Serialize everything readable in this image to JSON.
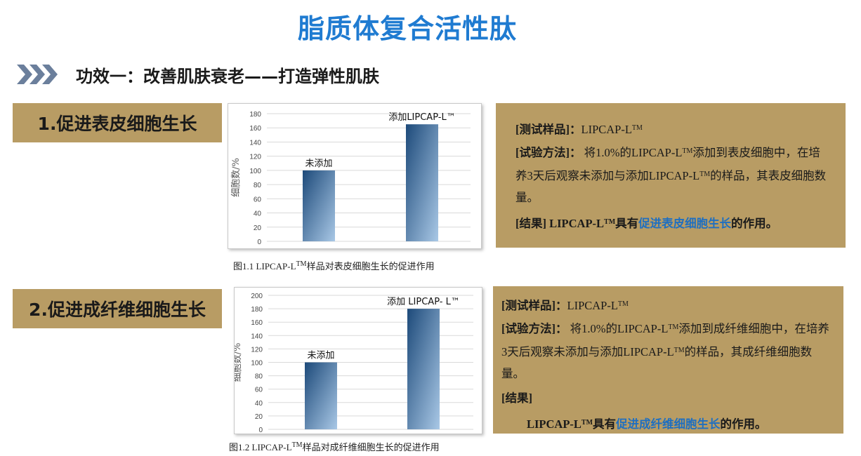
{
  "title": "脂质体复合活性肽",
  "subheading": "功效一：改善肌肤衰老——打造弹性肌肤",
  "sections": [
    {
      "label": "1.促进表皮细胞生长",
      "caption_prefix": "图1.1   LIPCAP-L",
      "caption_tm": "TM",
      "caption_suffix": "样品对表皮细胞生长的促进作用",
      "info": {
        "sample_label": "[测试样品]：",
        "sample_value": "LIPCAP-L",
        "tm": "TM",
        "method_label": "[试验方法]：",
        "method_text_1": " 将1.0%的LIPCAP-L",
        "method_text_2": "添加到表皮细胞中，在培养3天后观察未添加与添加LIPCAP-L",
        "method_text_3": "的样品，其表皮细胞数量。",
        "result_label": "[结果]",
        "result_text_1": " LIPCAP-L",
        "result_text_2": "具有",
        "result_highlight": "促进表皮细胞生长",
        "result_text_3": "的作用。"
      }
    },
    {
      "label": "2.促进成纤维细胞生长",
      "caption_prefix": "图1.2   LIPCAP-L",
      "caption_tm": "TM",
      "caption_suffix": "样品对成纤维细胞生长的促进作用",
      "info": {
        "sample_label": "[测试样品]：",
        "sample_value": "LIPCAP-L",
        "tm": "TM",
        "method_label": "[试验方法]：",
        "method_text_1": " 将1.0%的LIPCAP-L",
        "method_text_2": "添加到成纤维细胞中，在培养3天后观察未添加与添加LIPCAP-L",
        "method_text_3": "的样品，其成纤维细胞数量。",
        "result_label": "[结果]",
        "result_text_1": "LIPCAP-L",
        "result_text_2": "具有",
        "result_highlight": "促进成纤维细胞生长",
        "result_text_3": "的作用。"
      }
    }
  ],
  "chart_data": [
    {
      "type": "bar",
      "categories": [
        "未添加",
        "添加LIPCAP-L™"
      ],
      "values": [
        100,
        165
      ],
      "ylabel": "细胞数/%",
      "ylim": [
        0,
        180
      ],
      "yticks": [
        "0",
        "20",
        "40",
        "60",
        "80",
        "100",
        "120",
        "140",
        "160",
        "180"
      ],
      "grid": true
    },
    {
      "type": "bar",
      "categories": [
        "未添加",
        "添加 LIPCAP- L™"
      ],
      "values": [
        100,
        180
      ],
      "ylabel": "细胞数/%",
      "ylim": [
        0,
        200
      ],
      "yticks": [
        "0",
        "20",
        "40",
        "60",
        "80",
        "100",
        "120",
        "140",
        "160",
        "180",
        "200"
      ],
      "grid": true
    }
  ],
  "colors": {
    "title": "#1f7bd1",
    "label_bg": "#b89c64",
    "highlight": "#1f6fc0",
    "bar_dark": "#1d4a7a",
    "bar_light": "#a9c8e6"
  }
}
